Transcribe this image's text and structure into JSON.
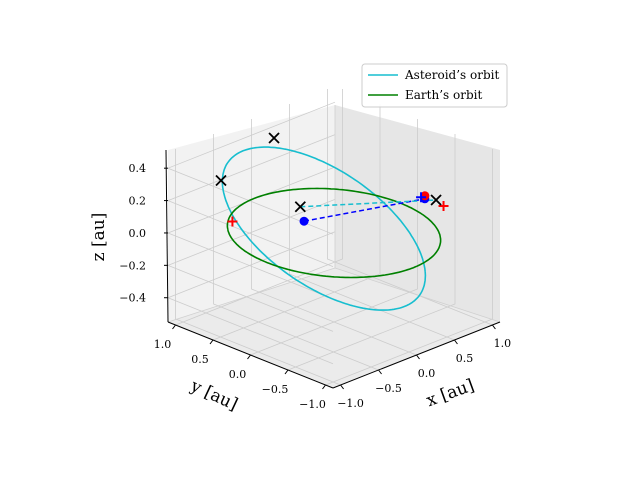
{
  "chart_data": {
    "type": "line",
    "projection": "3d",
    "title": "",
    "xlabel": "$x$ [au]",
    "ylabel": "$y$ [au]",
    "zlabel": "$z$ [au]",
    "xlabel_text": "x [au]",
    "ylabel_text": "y [au]",
    "zlabel_text": "z [au]",
    "xlim": [
      -1.1,
      1.1
    ],
    "ylim": [
      -1.1,
      1.1
    ],
    "zlim": [
      -0.55,
      0.5
    ],
    "x_ticks": [
      "−1.0",
      "−0.5",
      "0.0",
      "0.5",
      "1.0"
    ],
    "y_ticks": [
      "1.0",
      "0.5",
      "0.0",
      "−0.5",
      "−1.0"
    ],
    "z_ticks": [
      "0.4",
      "0.2",
      "0.0",
      "−0.2",
      "−0.4"
    ],
    "grid": true,
    "legend_position": "top-right",
    "series": [
      {
        "name": "Asteroid’s orbit",
        "color": "#17becf",
        "style": "solid",
        "orbit": {
          "semi_major": 1.0,
          "eccentricity": 0.1,
          "inclination_deg": 20,
          "ascending_node_deg": 20,
          "periapsis_deg": 300
        }
      },
      {
        "name": "Earth’s orbit",
        "color": "#008000",
        "style": "solid",
        "orbit": {
          "semi_major": 1.0,
          "eccentricity": 0.0,
          "inclination_deg": 30,
          "ascending_node_deg": 130,
          "periapsis_deg": 0
        }
      }
    ],
    "markers": {
      "x_marks": [
        {
          "x": -0.55,
          "y": 0.95,
          "z": 0.25
        },
        {
          "x": 0.05,
          "y": 0.85,
          "z": 0.42
        },
        {
          "x": 0.05,
          "y": 0.5,
          "z": 0.06
        },
        {
          "x": 0.9,
          "y": -0.45,
          "z": 0.12
        }
      ],
      "plus_marks": [
        {
          "x": -0.35,
          "y": 1.0,
          "z": -0.05,
          "color": "#ff0000"
        },
        {
          "x": 0.9,
          "y": -0.25,
          "z": 0.1,
          "color": "#0000ff"
        },
        {
          "x": 0.85,
          "y": -0.6,
          "z": 0.12,
          "color": "#ff0000"
        }
      ],
      "points": [
        {
          "x": 0.05,
          "y": 0.45,
          "z": -0.02,
          "color": "#0000ff"
        },
        {
          "x": 0.9,
          "y": -0.3,
          "z": 0.1,
          "color": "#0000ff"
        },
        {
          "x": 0.95,
          "y": -0.25,
          "z": 0.1,
          "color": "#ff0000"
        }
      ]
    },
    "lines": [
      {
        "from": {
          "x": 0.05,
          "y": 0.45,
          "z": -0.02
        },
        "to": {
          "x": 0.9,
          "y": -0.3,
          "z": 0.1
        },
        "color": "#0000ff",
        "style": "dashed"
      },
      {
        "from": {
          "x": 0.05,
          "y": 0.5,
          "z": 0.06
        },
        "to": {
          "x": 0.9,
          "y": -0.45,
          "z": 0.12
        },
        "color": "#17becf",
        "style": "dashed"
      }
    ]
  }
}
